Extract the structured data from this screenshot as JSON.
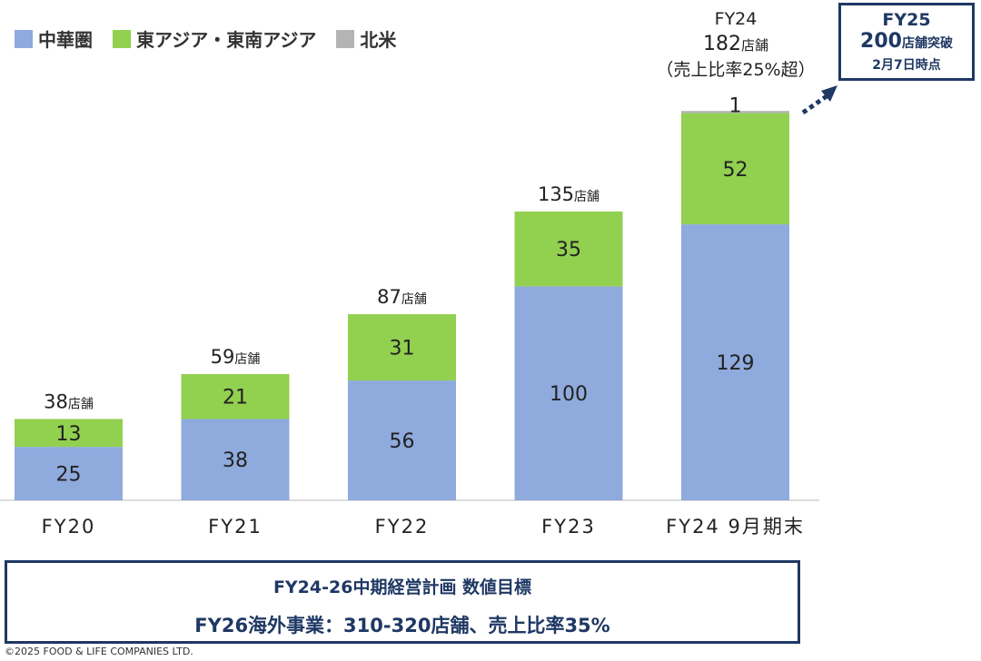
{
  "chart_data": {
    "type": "bar",
    "stacked": true,
    "categories": [
      "FY20",
      "FY21",
      "FY22",
      "FY23",
      "FY24 9月期末"
    ],
    "series": [
      {
        "name": "中華圏",
        "color": "#8faadc",
        "values": [
          25,
          38,
          56,
          100,
          129
        ]
      },
      {
        "name": "東アジア・東南アジア",
        "color": "#92d050",
        "values": [
          13,
          21,
          31,
          35,
          52
        ]
      },
      {
        "name": "北米",
        "color": "#b4b4b4",
        "values": [
          0,
          0,
          0,
          0,
          1
        ]
      }
    ],
    "totals": [
      "38",
      "59",
      "87",
      "135",
      "182"
    ],
    "total_unit": "店舗",
    "ylim": [
      0,
      190
    ],
    "grid": false,
    "legend": "top-left"
  },
  "fy24_note": {
    "line1": "FY24",
    "line2": "182",
    "unit": "店舗",
    "line3": "（売上比率25%超）"
  },
  "fy25_box": {
    "line1": "FY25",
    "line2": "200",
    "line2_suffix": "店舗突破",
    "line3": "2月7日時点"
  },
  "plan_box": {
    "line1": "FY24-26中期経営計画 数値目標",
    "line2": "FY26海外事業：310-320店舗、売上比率35%"
  },
  "colors": {
    "navy": "#1f3864"
  },
  "copyright": "©2025 FOOD & LIFE COMPANIES LTD."
}
